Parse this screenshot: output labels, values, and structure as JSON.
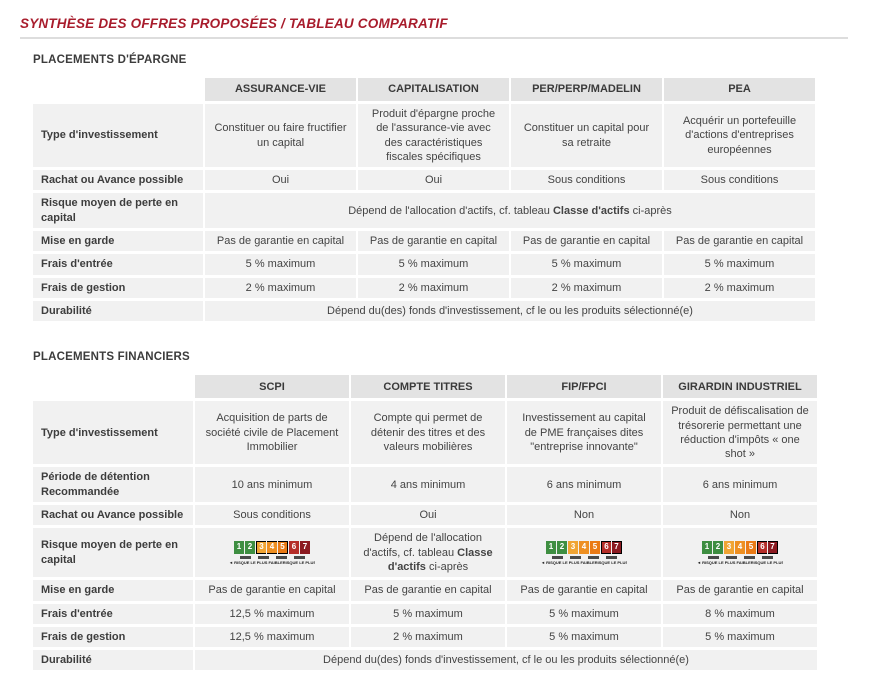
{
  "page": {
    "title": "SYNTHÈSE DES OFFRES PROPOSÉES / TABLEAU COMPARATIF"
  },
  "colors": {
    "title_accent": "#A81C2C",
    "row_background": "#F1F1F1",
    "header_background": "#E3E3E3"
  },
  "table_epargne": {
    "section": "PLACEMENTS D'ÉPARGNE",
    "cols": [
      "ASSURANCE-VIE",
      "CAPITALISATION",
      "PER/PERP/MADELIN",
      "PEA"
    ],
    "type": {
      "label": "Type d'investissement",
      "c1": "Constituer ou faire fructifier un capital",
      "c2": "Produit d'épargne proche de l'assurance-vie avec des caractéristiques fiscales spécifiques",
      "c3": "Constituer un capital pour sa retraite",
      "c4": "Acquérir un portefeuille d'actions d'entreprises européennes"
    },
    "rachat": {
      "label": "Rachat ou Avance possible",
      "c1": "Oui",
      "c2": "Oui",
      "c3": "Sous conditions",
      "c4": "Sous conditions"
    },
    "risque": {
      "label": "Risque moyen de perte en capital",
      "pre": "Dépend de l'allocation d'actifs, cf. tableau ",
      "bold": "Classe d'actifs",
      "post": " ci-après"
    },
    "garde": {
      "label": "Mise en garde",
      "c1": "Pas de garantie en capital",
      "c2": "Pas de garantie en capital",
      "c3": "Pas de garantie en capital",
      "c4": "Pas de garantie en capital"
    },
    "entree": {
      "label": "Frais d'entrée",
      "c1": "5 % maximum",
      "c2": "5 % maximum",
      "c3": "5 % maximum",
      "c4": "5 % maximum"
    },
    "gestion": {
      "label": "Frais de gestion",
      "c1": "2 % maximum",
      "c2": "2 % maximum",
      "c3": "2 % maximum",
      "c4": "2 % maximum"
    },
    "durabilite": {
      "label": "Durabilité",
      "span": "Dépend du(des) fonds d'investissement, cf le ou les produits sélectionné(e)"
    }
  },
  "table_financiers": {
    "section": "PLACEMENTS FINANCIERS",
    "cols": [
      "SCPI",
      "COMPTE TITRES",
      "FIP/FPCI",
      "GIRARDIN INDUSTRIEL"
    ],
    "type": {
      "label": "Type d'investissement",
      "c1": "Acquisition de parts de société civile de Placement Immobilier",
      "c2": "Compte qui permet de détenir des titres et des valeurs mobilières",
      "c3": "Investissement au capital de PME françaises dites \"entreprise innovante\"",
      "c4": "Produit de défiscalisation de trésorerie permettant une réduction d'impôts « one shot »"
    },
    "periode": {
      "label": "Période de détention Recommandée",
      "c1": "10 ans minimum",
      "c2": "4 ans minimum",
      "c3": "6 ans minimum",
      "c4": "6 ans minimum"
    },
    "rachat": {
      "label": "Rachat ou Avance possible",
      "c1": "Sous conditions",
      "c2": "Oui",
      "c3": "Non",
      "c4": "Non"
    },
    "risque": {
      "label": "Risque moyen de perte en capital",
      "scpi_range": "3-5",
      "c2pre": "Dépend de l'allocation d'actifs, cf. tableau ",
      "c2bold": "Classe d'actifs",
      "c2post": " ci-après",
      "fip_range": "6-7",
      "girardin_range": "6-7"
    },
    "garde": {
      "label": "Mise en garde",
      "c1": "Pas de garantie en capital",
      "c2": "Pas de garantie en capital",
      "c3": "Pas de garantie en capital",
      "c4": "Pas de garantie en capital"
    },
    "entree": {
      "label": "Frais d'entrée",
      "c1": "12,5 % maximum",
      "c2": "5 % maximum",
      "c3": "5 % maximum",
      "c4": "8 % maximum"
    },
    "gestion": {
      "label": "Frais de gestion",
      "c1": "12,5 % maximum",
      "c2": "2 % maximum",
      "c3": "5 % maximum",
      "c4": "5 % maximum"
    },
    "durabilite": {
      "label": "Durabilité",
      "span": "Dépend du(des) fonds d'investissement, cf le ou les produits sélectionné(e)"
    }
  },
  "risk_scale": {
    "numbers": [
      "1",
      "2",
      "3",
      "4",
      "5",
      "6",
      "7"
    ],
    "colors": [
      "#3E8E41",
      "#3E8E41",
      "#F0A433",
      "#EE8F21",
      "#EA7A15",
      "#B52D28",
      "#8C1A21"
    ],
    "low_label": "RISQUE LE PLUS FAIBLE",
    "high_label": "RISQUE LE PLUS ÉLEVÉ",
    "left_arrow": "◄",
    "right_arrow": "►"
  }
}
